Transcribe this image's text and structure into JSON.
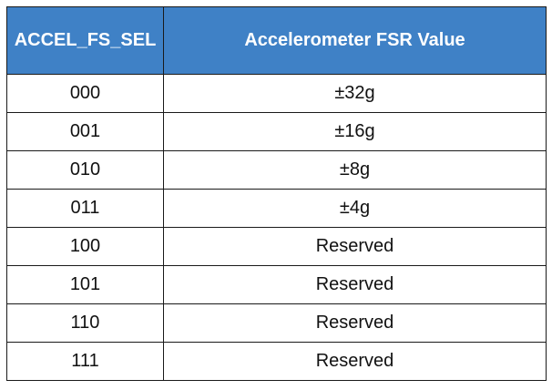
{
  "table": {
    "headers": [
      "ACCEL_FS_SEL",
      "Accelerometer FSR Value"
    ],
    "rows": [
      [
        "000",
        "±32g"
      ],
      [
        "001",
        "±16g"
      ],
      [
        "010",
        "±8g"
      ],
      [
        "011",
        "±4g"
      ],
      [
        "100",
        "Reserved"
      ],
      [
        "101",
        "Reserved"
      ],
      [
        "110",
        "Reserved"
      ],
      [
        "111",
        "Reserved"
      ]
    ]
  },
  "colors": {
    "header_background": "#3f81c6",
    "header_text": "#ffffff",
    "border": "#1a1a1a",
    "cell_text": "#111111"
  }
}
